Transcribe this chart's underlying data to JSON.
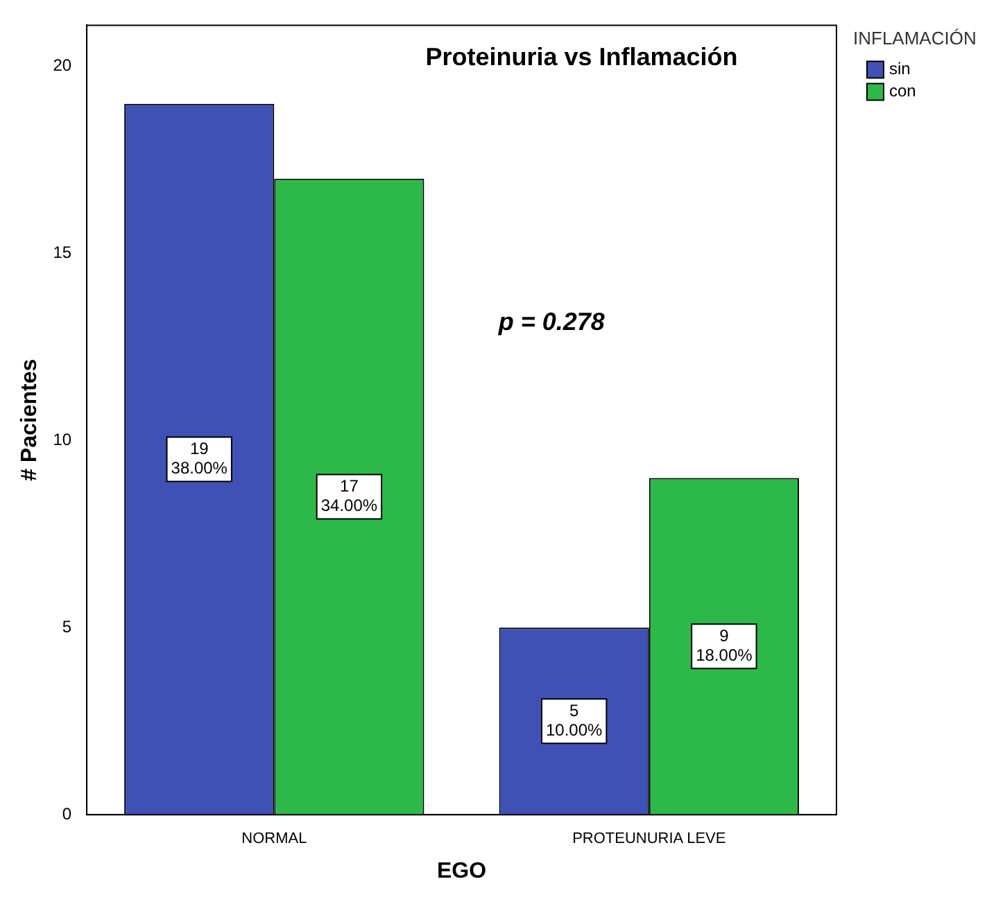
{
  "chart_data": {
    "type": "bar",
    "title": "Proteinuria vs Inflamación",
    "xlabel": "EGO",
    "ylabel": "# Pacientes",
    "legend_title": "INFLAMACIÓN",
    "legend": "right",
    "categories": [
      "NORMAL",
      "PROTEUNURIA LEVE"
    ],
    "series": [
      {
        "name": "sin",
        "color": "#3f51b5",
        "values": [
          19,
          5
        ],
        "value_labels": [
          "19\n38.00%",
          "5\n10.00%"
        ]
      },
      {
        "name": "con",
        "color": "#2db84a",
        "values": [
          17,
          9
        ],
        "value_labels": [
          "17\n34.00%",
          "9\n18.00%"
        ]
      }
    ],
    "ylim": [
      0,
      21.1
    ],
    "yticks": [
      0,
      5,
      10,
      15,
      20
    ],
    "grid": false,
    "annotations": [
      "p = 0.278"
    ]
  }
}
